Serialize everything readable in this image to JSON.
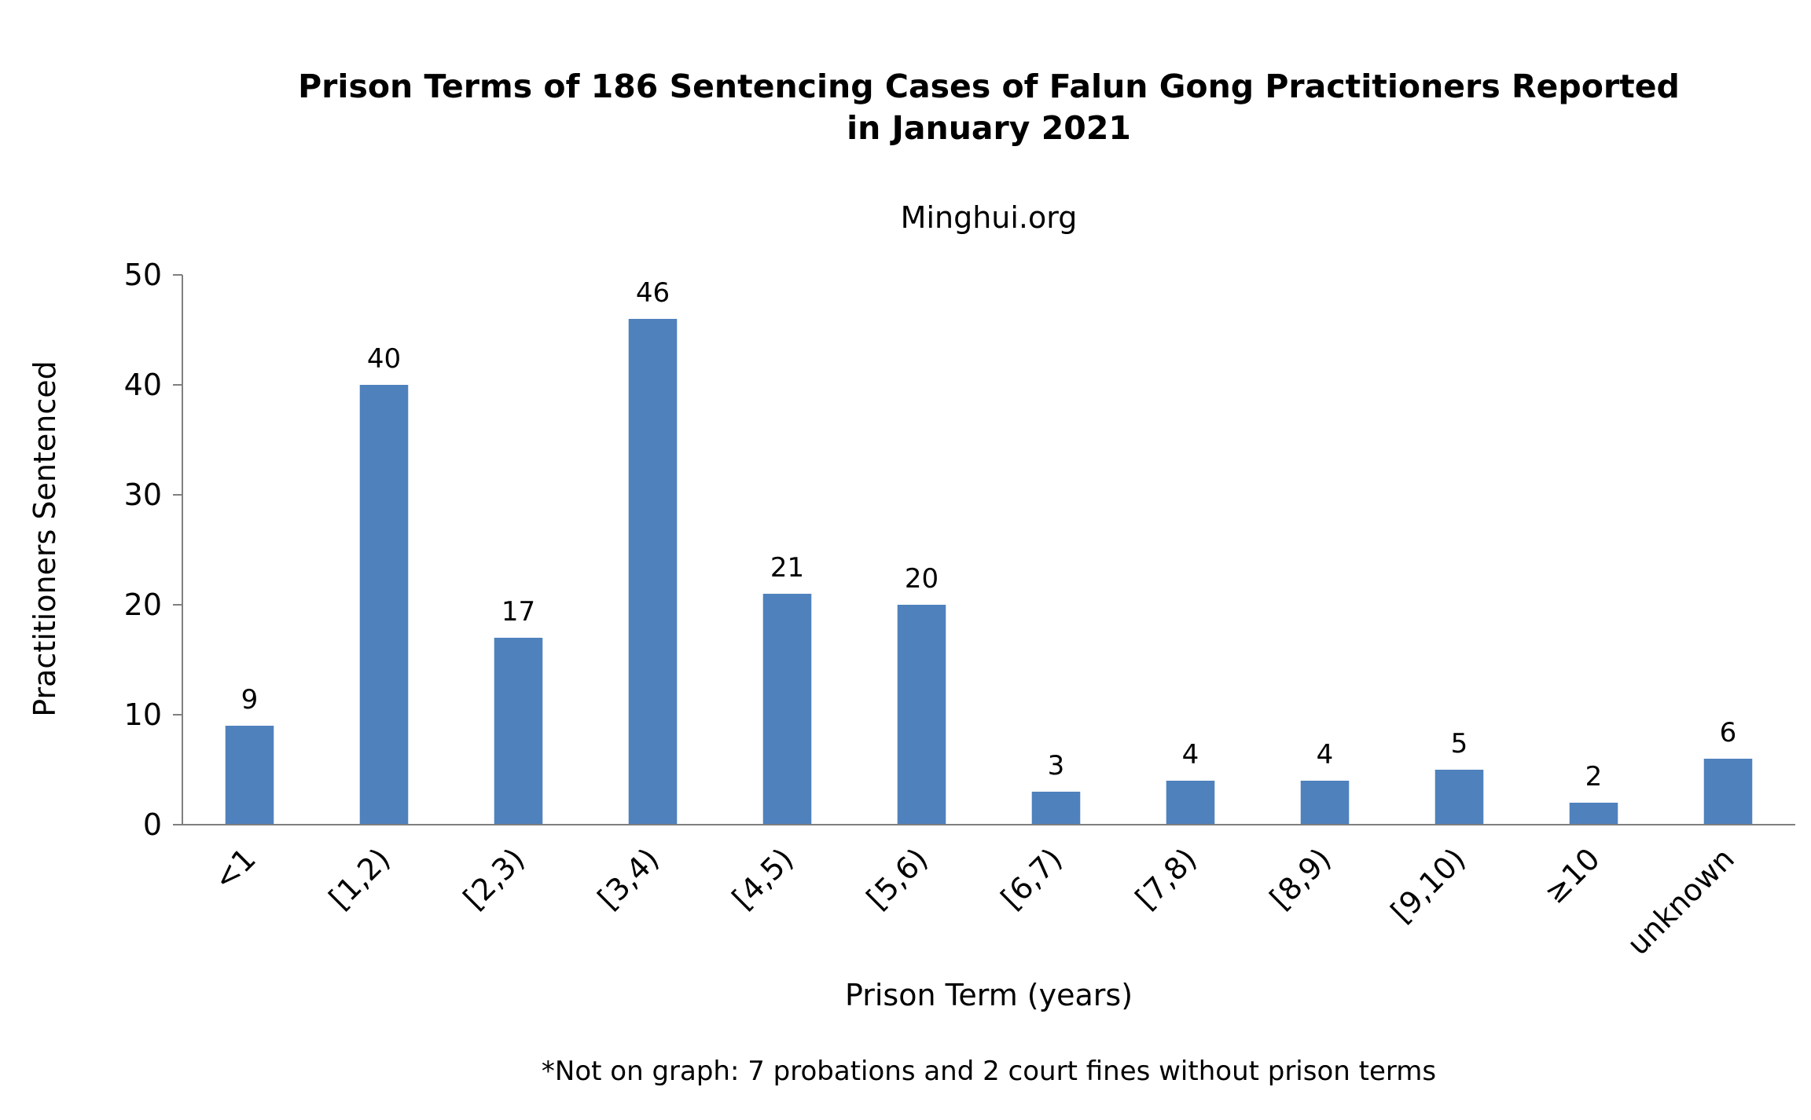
{
  "chart_data": {
    "type": "bar",
    "title_lines": [
      "Prison Terms of 186 Sentencing Cases of Falun Gong Practitioners Reported",
      "in January 2021"
    ],
    "subtitle": "Minghui.org",
    "xlabel": "Prison Term (years)",
    "ylabel": "Practitioners Sentenced",
    "footnote": "*Not on graph: 7 probations and 2 court fines without prison terms",
    "categories": [
      "<1",
      "[1,2)",
      "[2,3)",
      "[3,4)",
      "[4,5)",
      "[5,6)",
      "[6,7)",
      "[7,8)",
      "[8,9)",
      "[9,10)",
      "≥10",
      "unknown"
    ],
    "values": [
      9,
      40,
      17,
      46,
      21,
      20,
      3,
      4,
      4,
      5,
      2,
      6
    ],
    "ylim": [
      0,
      50
    ],
    "yticks": [
      0,
      10,
      20,
      30,
      40,
      50
    ],
    "grid": false,
    "legend": "none",
    "data_labels": true,
    "bar_color": "#4F81BD",
    "axis_color": "#7F7F7F"
  }
}
